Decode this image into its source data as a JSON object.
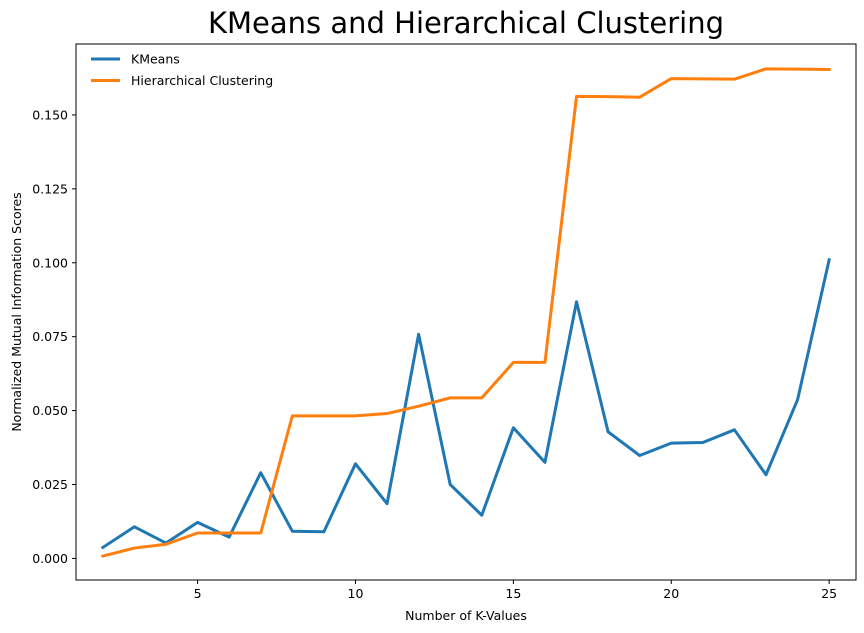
{
  "chart_data": {
    "type": "line",
    "title": "KMeans and Hierarchical Clustering",
    "xlabel": "Number of K-Values",
    "ylabel": "Normalized Mutual Information Scores",
    "xlim": [
      1.15,
      25.85
    ],
    "ylim": [
      -0.0073,
      0.174
    ],
    "xticks": [
      5,
      10,
      15,
      20,
      25
    ],
    "yticks": [
      0.0,
      0.025,
      0.05,
      0.075,
      0.1,
      0.125,
      0.15
    ],
    "ytick_labels": [
      "0.000",
      "0.025",
      "0.050",
      "0.075",
      "0.100",
      "0.125",
      "0.150"
    ],
    "grid": false,
    "legend": "top-left",
    "x": [
      2,
      3,
      4,
      5,
      6,
      7,
      8,
      9,
      10,
      11,
      12,
      13,
      14,
      15,
      16,
      17,
      18,
      19,
      20,
      21,
      22,
      23,
      24,
      25
    ],
    "series": [
      {
        "name": "KMeans",
        "color": "#1f77b4",
        "values": [
          0.0037,
          0.0107,
          0.0052,
          0.0122,
          0.0072,
          0.029,
          0.0092,
          0.009,
          0.032,
          0.0185,
          0.0758,
          0.025,
          0.0146,
          0.0442,
          0.0325,
          0.0868,
          0.0428,
          0.0348,
          0.039,
          0.0392,
          0.0435,
          0.0283,
          0.0537,
          0.101
        ]
      },
      {
        "name": "Hierarchical Clustering",
        "color": "#ff7f0e",
        "values": [
          0.0008,
          0.0035,
          0.0048,
          0.0086,
          0.0086,
          0.0086,
          0.0482,
          0.0482,
          0.0482,
          0.049,
          0.0515,
          0.0543,
          0.0543,
          0.0663,
          0.0663,
          0.1563,
          0.1562,
          0.156,
          0.1623,
          0.1622,
          0.1621,
          0.1656,
          0.1655,
          0.1654
        ]
      }
    ]
  }
}
